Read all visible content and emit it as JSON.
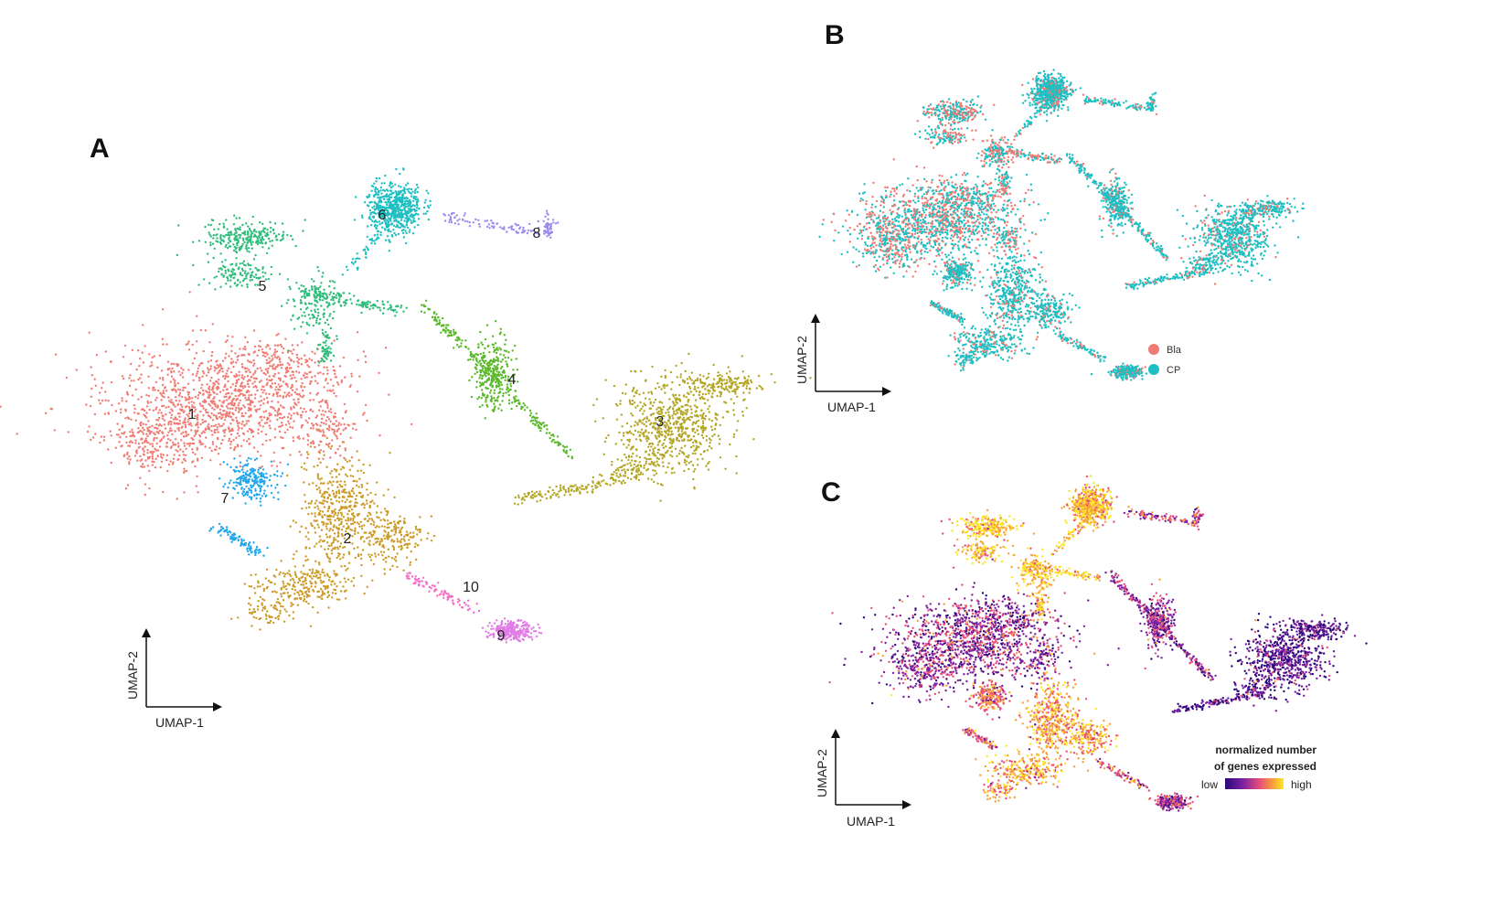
{
  "panels": {
    "a": {
      "letter": "A"
    },
    "b": {
      "letter": "B"
    },
    "c": {
      "letter": "C"
    }
  },
  "axes": {
    "x_label": "UMAP-1",
    "y_label": "UMAP-2"
  },
  "chart_data": [
    {
      "type": "scatter",
      "panel": "A",
      "xlabel": "UMAP-1",
      "ylabel": "UMAP-2",
      "grid": false,
      "cluster_labels": [
        {
          "label": "1",
          "x": 210,
          "y": 458
        },
        {
          "label": "2",
          "x": 380,
          "y": 594
        },
        {
          "label": "3",
          "x": 722,
          "y": 466
        },
        {
          "label": "4",
          "x": 560,
          "y": 420
        },
        {
          "label": "5",
          "x": 287,
          "y": 318
        },
        {
          "label": "6",
          "x": 418,
          "y": 240
        },
        {
          "label": "7",
          "x": 246,
          "y": 550
        },
        {
          "label": "8",
          "x": 587,
          "y": 260
        },
        {
          "label": "9",
          "x": 548,
          "y": 700
        },
        {
          "label": "10",
          "x": 515,
          "y": 647
        }
      ],
      "series": [
        {
          "label": "1",
          "color": "#f07b72"
        },
        {
          "label": "2",
          "color": "#cc9a26"
        },
        {
          "label": "3",
          "color": "#b3a625"
        },
        {
          "label": "4",
          "color": "#5bb82b"
        },
        {
          "label": "5",
          "color": "#2ebd7a"
        },
        {
          "label": "6",
          "color": "#1ebfc2"
        },
        {
          "label": "7",
          "color": "#23a7ec"
        },
        {
          "label": "8",
          "color": "#9a8cf0"
        },
        {
          "label": "9",
          "color": "#e07be6"
        },
        {
          "label": "10",
          "color": "#f56cc6"
        }
      ]
    },
    {
      "type": "scatter",
      "panel": "B",
      "xlabel": "UMAP-1",
      "ylabel": "UMAP-2",
      "grid": false,
      "legend_position": "bottom-right",
      "legend": [
        {
          "name": "Bla",
          "color": "#f07b72"
        },
        {
          "name": "CP",
          "color": "#1ebfc2"
        }
      ]
    },
    {
      "type": "scatter",
      "panel": "C",
      "xlabel": "UMAP-1",
      "ylabel": "UMAP-2",
      "grid": false,
      "colorbar": {
        "title_line1": "normalized number",
        "title_line2": "of genes expressed",
        "low_label": "low",
        "high_label": "high",
        "colors": [
          "#2a0a7a",
          "#7b1fa2",
          "#e8507a",
          "#f6a13a",
          "#fde725"
        ]
      }
    }
  ]
}
